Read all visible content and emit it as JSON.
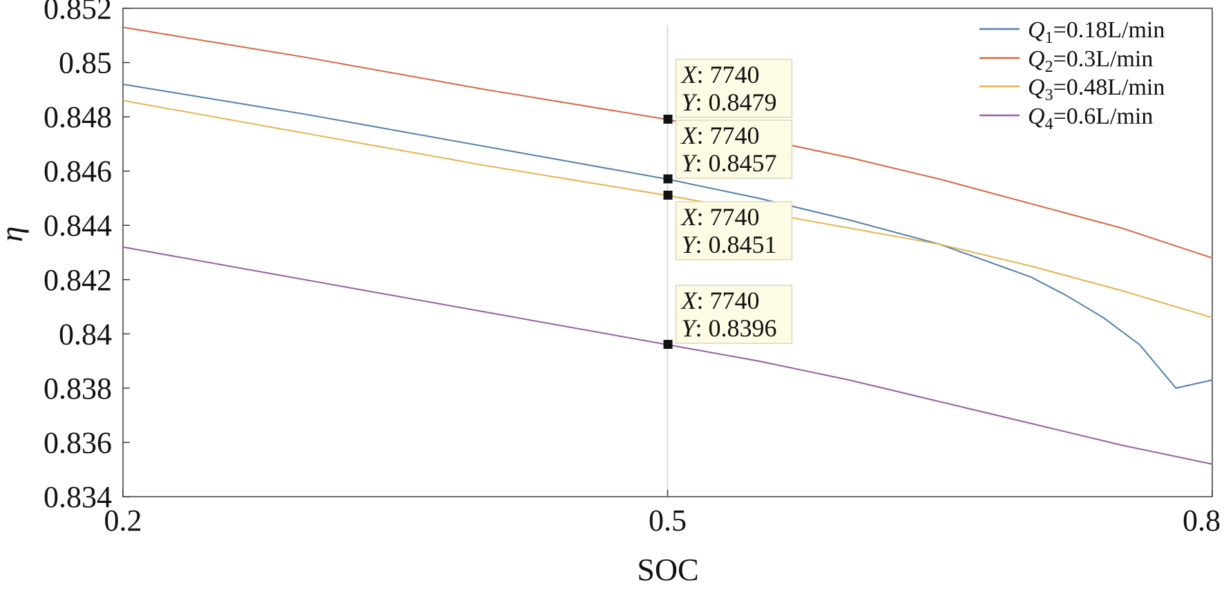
{
  "chart_data": {
    "type": "line",
    "title": "",
    "xlabel": "SOC",
    "ylabel": "η",
    "xlim": [
      0.2,
      0.8
    ],
    "ylim": [
      0.834,
      0.852
    ],
    "xticks": [
      {
        "value": 0.2,
        "label": "0.2"
      },
      {
        "value": 0.5,
        "label": "0.5"
      },
      {
        "value": 0.8,
        "label": "0.8"
      }
    ],
    "yticks": [
      {
        "value": 0.852,
        "label": "0.852"
      },
      {
        "value": 0.85,
        "label": "0.85"
      },
      {
        "value": 0.848,
        "label": "0.848"
      },
      {
        "value": 0.846,
        "label": "0.846"
      },
      {
        "value": 0.844,
        "label": "0.844"
      },
      {
        "value": 0.842,
        "label": "0.842"
      },
      {
        "value": 0.84,
        "label": "0.84"
      },
      {
        "value": 0.838,
        "label": "0.838"
      },
      {
        "value": 0.836,
        "label": "0.836"
      },
      {
        "value": 0.834,
        "label": "0.834"
      }
    ],
    "grid": false,
    "legend_position": "top-right",
    "series": [
      {
        "name": "Q1=0.18L/min",
        "label_symbol": "Q",
        "label_sub": "1",
        "label_rest": "=0.18L/min",
        "color": "#4f7fb0",
        "x": [
          0.2,
          0.3,
          0.4,
          0.5,
          0.55,
          0.6,
          0.65,
          0.7,
          0.72,
          0.74,
          0.76,
          0.78,
          0.8
        ],
        "y": [
          0.8492,
          0.8481,
          0.8469,
          0.8457,
          0.845,
          0.8442,
          0.8433,
          0.8421,
          0.8414,
          0.8406,
          0.8396,
          0.838,
          0.8383
        ]
      },
      {
        "name": "Q2=0.3L/min",
        "label_symbol": "Q",
        "label_sub": "2",
        "label_rest": "=0.3L/min",
        "color": "#d9663e",
        "x": [
          0.2,
          0.3,
          0.4,
          0.5,
          0.55,
          0.6,
          0.65,
          0.7,
          0.75,
          0.8
        ],
        "y": [
          0.8513,
          0.8502,
          0.849,
          0.8479,
          0.8472,
          0.8465,
          0.8457,
          0.8448,
          0.8439,
          0.8428
        ]
      },
      {
        "name": "Q3=0.48L/min",
        "label_symbol": "Q",
        "label_sub": "3",
        "label_rest": "=0.48L/min",
        "color": "#e8b24c",
        "x": [
          0.2,
          0.3,
          0.4,
          0.5,
          0.55,
          0.6,
          0.65,
          0.7,
          0.75,
          0.8
        ],
        "y": [
          0.8486,
          0.8474,
          0.8462,
          0.8451,
          0.8445,
          0.8439,
          0.8433,
          0.8425,
          0.8416,
          0.8406
        ]
      },
      {
        "name": "Q4=0.6L/min",
        "label_symbol": "Q",
        "label_sub": "4",
        "label_rest": "=0.6L/min",
        "color": "#9c5aa8",
        "x": [
          0.2,
          0.3,
          0.4,
          0.5,
          0.55,
          0.6,
          0.65,
          0.7,
          0.75,
          0.8
        ],
        "y": [
          0.8432,
          0.842,
          0.8408,
          0.8396,
          0.839,
          0.8383,
          0.8375,
          0.8367,
          0.8359,
          0.8352
        ]
      }
    ],
    "cursor_x": 0.5,
    "datatips": [
      {
        "series": "Q2=0.3L/min",
        "x_label": "X",
        "x_value": "7740",
        "y_label": "Y",
        "y_value": "0.8479",
        "x": 0.5,
        "y": 0.8479
      },
      {
        "series": "Q1=0.18L/min",
        "x_label": "X",
        "x_value": "7740",
        "y_label": "Y",
        "y_value": "0.8457",
        "x": 0.5,
        "y": 0.8457
      },
      {
        "series": "Q3=0.48L/min",
        "x_label": "X",
        "x_value": "7740",
        "y_label": "Y",
        "y_value": "0.8451",
        "x": 0.5,
        "y": 0.8451
      },
      {
        "series": "Q4=0.6L/min",
        "x_label": "X",
        "x_value": "7740",
        "y_label": "Y",
        "y_value": "0.8396",
        "x": 0.5,
        "y": 0.8396
      }
    ]
  }
}
